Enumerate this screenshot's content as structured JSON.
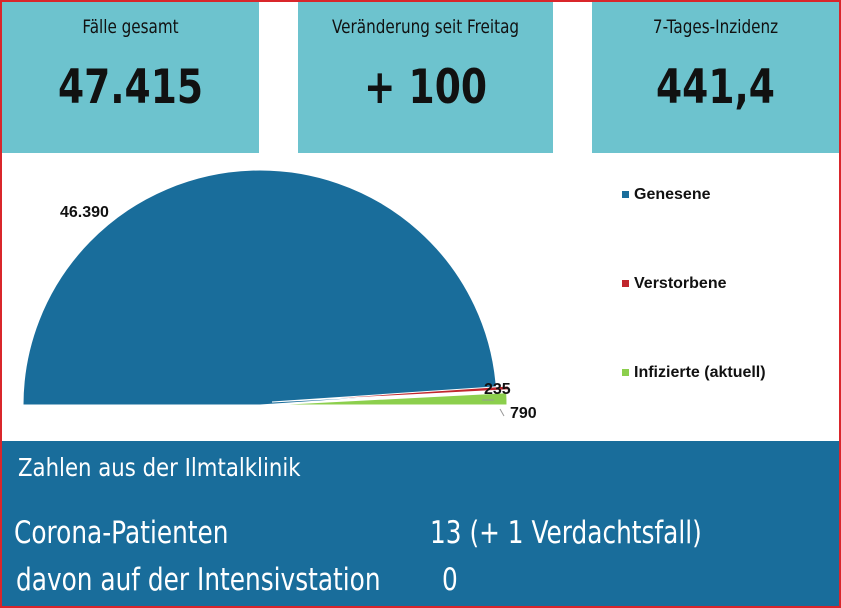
{
  "cards": [
    {
      "label": "Fälle gesamt",
      "value": "47.415"
    },
    {
      "label": "Veränderung seit Freitag",
      "value": "+ 100"
    },
    {
      "label": "7-Tages-Inzidenz",
      "value": "441,4"
    }
  ],
  "chart_data": {
    "type": "pie",
    "variant": "half-pie",
    "slices": [
      {
        "name": "Genesene",
        "value": 46390,
        "label": "46.390",
        "color": "#196d9b"
      },
      {
        "name": "Verstorbene",
        "value": 235,
        "label": "235",
        "color": "#c0262d"
      },
      {
        "name": "Infizierte (aktuell)",
        "value": 790,
        "label": "790",
        "color": "#8ccf4d"
      }
    ],
    "legend_position": "right"
  },
  "clinic": {
    "title": "Zahlen aus der Ilmtalklinik",
    "rows": [
      {
        "label": "Corona-Patienten",
        "value": "13 (+ 1 Verdachtsfall)"
      },
      {
        "label": "davon auf der Intensivstation",
        "value": "0"
      }
    ]
  }
}
